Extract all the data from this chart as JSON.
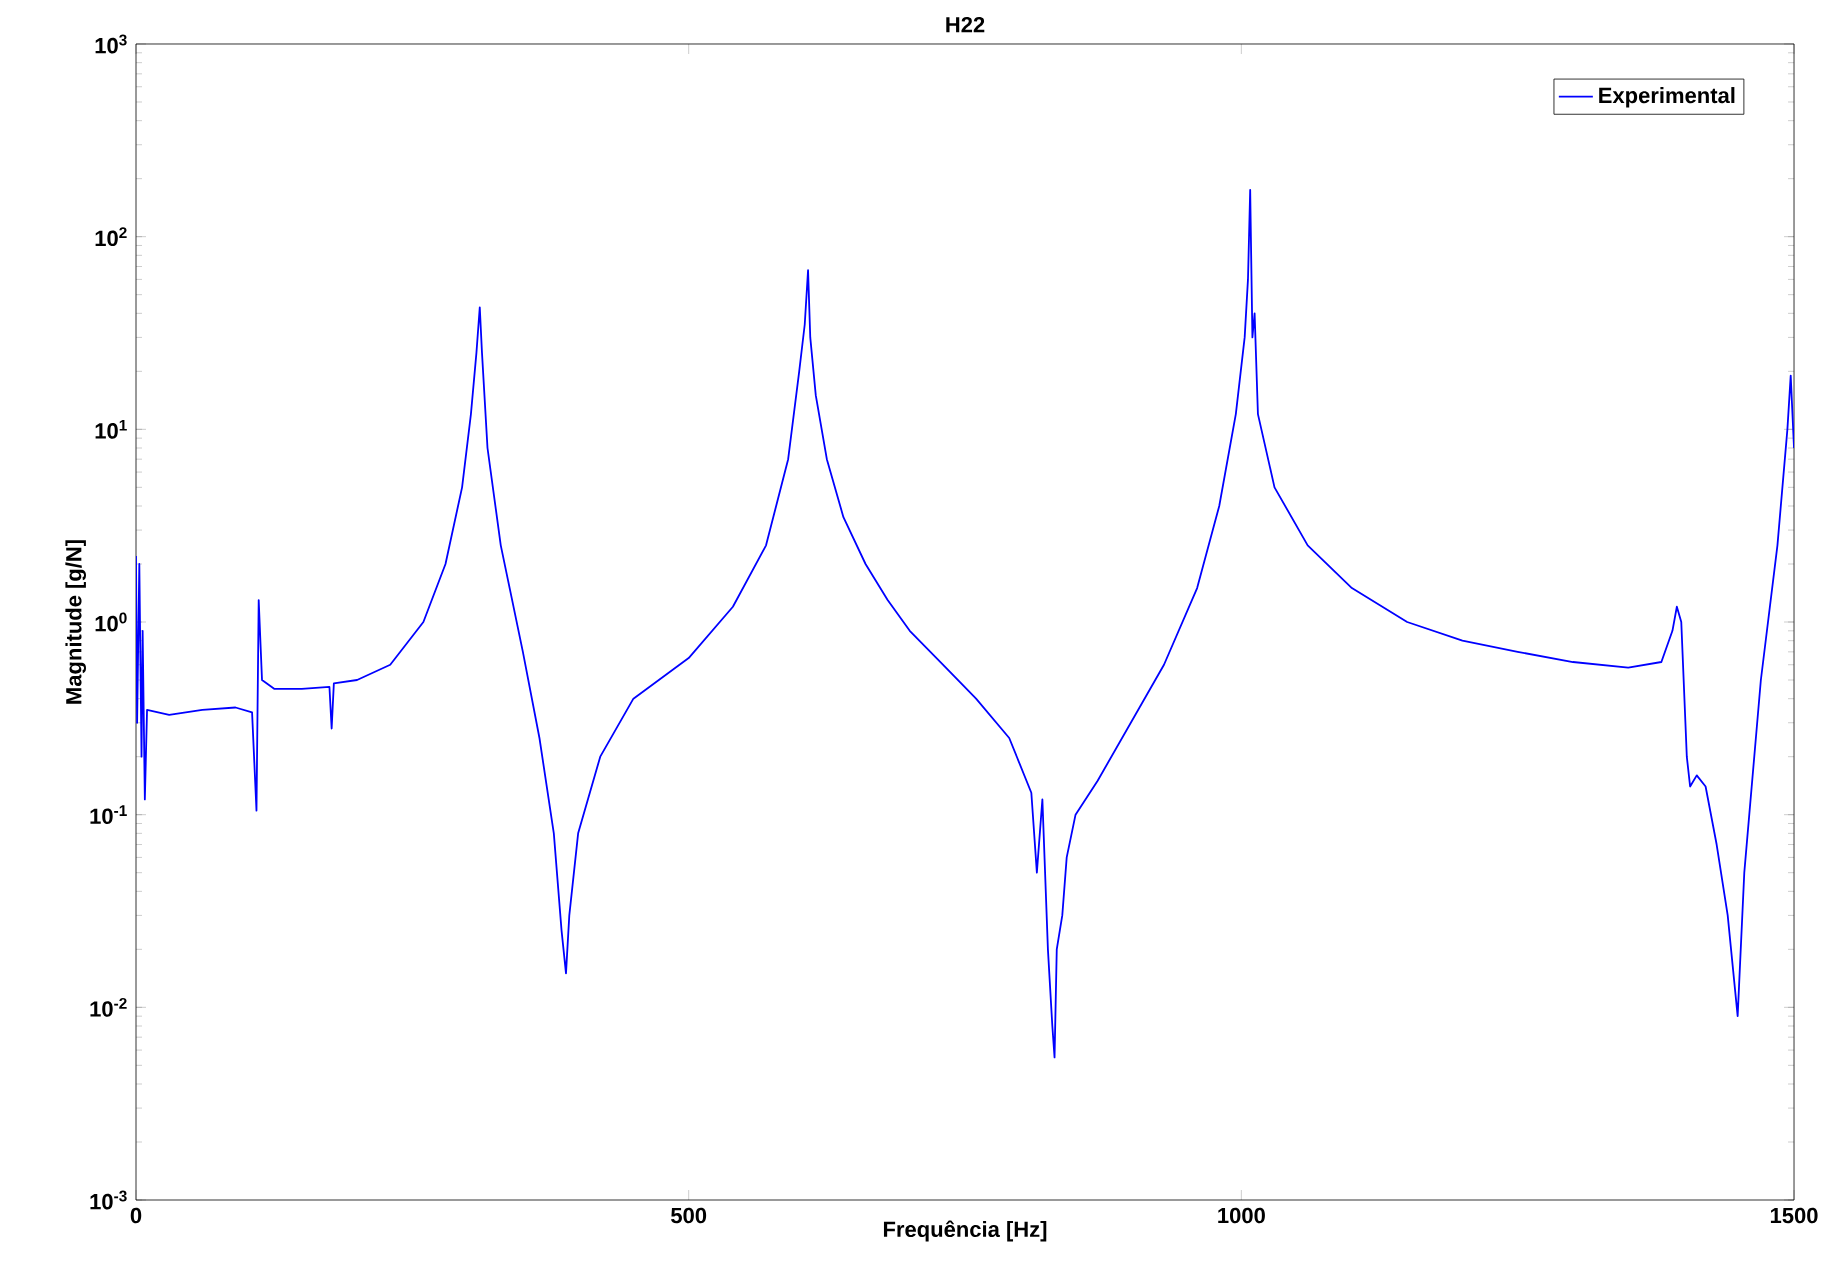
{
  "chart_data": {
    "type": "line",
    "title": "H22",
    "xlabel": "Frequência [Hz]",
    "ylabel": "Magnitude [g/N]",
    "log": "y",
    "legend": "top right",
    "grid": false,
    "xlim": [
      0,
      1500
    ],
    "xticks": [
      0,
      500,
      1000,
      1500
    ],
    "ylim": [
      0.001,
      1000
    ],
    "yticks": [
      {
        "value": 0.001,
        "label": "10$^{-3}$"
      },
      {
        "value": 0.01,
        "label": "10$^{-2}$"
      },
      {
        "value": 0.1,
        "label": "10$^{-1}$"
      },
      {
        "value": 1,
        "label": "10$^{0}$"
      },
      {
        "value": 10,
        "label": "10$^{1}$"
      },
      {
        "value": 100,
        "label": "10$^{2}$"
      },
      {
        "value": 1000,
        "label": "10$^{3}$"
      }
    ],
    "series": [
      {
        "name": "Experimental",
        "color": "#0000ff",
        "x": [
          0,
          1,
          3,
          5,
          6,
          8,
          10,
          30,
          60,
          90,
          105,
          109,
          111,
          114,
          125,
          150,
          175,
          177,
          179,
          200,
          230,
          260,
          280,
          295,
          303,
          308,
          311,
          313,
          318,
          330,
          350,
          365,
          378,
          385,
          389,
          392,
          400,
          420,
          450,
          500,
          540,
          570,
          590,
          600,
          605,
          608,
          610,
          615,
          625,
          640,
          660,
          680,
          700,
          730,
          760,
          790,
          810,
          815,
          820,
          825,
          829,
          831,
          833,
          838,
          842,
          850,
          870,
          900,
          930,
          960,
          980,
          995,
          1003,
          1006,
          1008,
          1010,
          1012,
          1015,
          1030,
          1060,
          1100,
          1150,
          1200,
          1250,
          1300,
          1350,
          1380,
          1390,
          1394,
          1398,
          1403,
          1406,
          1412,
          1420,
          1430,
          1440,
          1449,
          1455,
          1470,
          1485,
          1494,
          1497,
          1500
        ],
        "values": [
          2.2,
          0.3,
          2.0,
          0.2,
          0.9,
          0.12,
          0.35,
          0.33,
          0.35,
          0.36,
          0.34,
          0.105,
          1.3,
          0.5,
          0.45,
          0.45,
          0.46,
          0.28,
          0.48,
          0.5,
          0.6,
          1.0,
          2.0,
          5,
          12,
          25,
          43,
          25,
          8,
          2.5,
          0.7,
          0.25,
          0.08,
          0.025,
          0.015,
          0.03,
          0.08,
          0.2,
          0.4,
          0.65,
          1.2,
          2.5,
          7,
          20,
          35,
          67,
          30,
          15,
          7,
          3.5,
          2.0,
          1.3,
          0.9,
          0.6,
          0.4,
          0.25,
          0.13,
          0.05,
          0.12,
          0.02,
          0.008,
          0.0055,
          0.02,
          0.03,
          0.06,
          0.1,
          0.15,
          0.3,
          0.6,
          1.5,
          4,
          12,
          30,
          60,
          175,
          30,
          40,
          12,
          5,
          2.5,
          1.5,
          1.0,
          0.8,
          0.7,
          0.62,
          0.58,
          0.62,
          0.9,
          1.2,
          1.0,
          0.2,
          0.14,
          0.16,
          0.14,
          0.07,
          0.03,
          0.009,
          0.05,
          0.5,
          2.5,
          10,
          19,
          8
        ]
      }
    ]
  }
}
